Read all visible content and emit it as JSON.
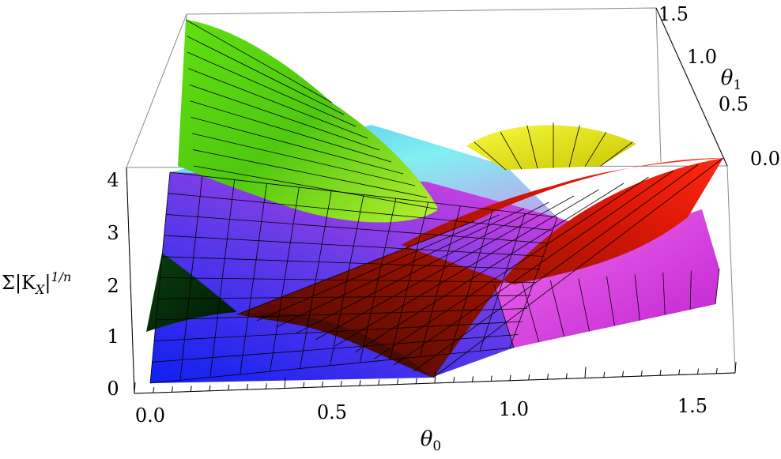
{
  "chart_data": {
    "type": "surface3d",
    "title": "",
    "xlabel": "θ0",
    "ylabel": "θ1",
    "zlabel": "Σ|K_X|^(1/n)",
    "xlabel_parts": {
      "main": "θ",
      "sub": "0"
    },
    "ylabel_parts": {
      "main": "θ",
      "sub": "1"
    },
    "zlabel_parts": {
      "prefix": "Σ|K",
      "sub": "X",
      "bar": "|",
      "sup": "1/n"
    },
    "xlim": [
      0,
      1.5708
    ],
    "ylim": [
      0,
      1.5708
    ],
    "zlim": [
      0,
      4
    ],
    "x_ticks": [
      "0.0",
      "0.5",
      "1.0",
      "1.5"
    ],
    "y_ticks": [
      "0.0",
      "0.5",
      "1.0",
      "1.5"
    ],
    "z_ticks": [
      "0",
      "1",
      "2",
      "3",
      "4"
    ],
    "x_tick_values": [
      0,
      0.5,
      1.0,
      1.5
    ],
    "y_tick_values": [
      0,
      0.5,
      1.0,
      1.5
    ],
    "z_tick_values": [
      0,
      1,
      2,
      3,
      4
    ],
    "boxed": true,
    "mesh": true,
    "surfaces": [
      {
        "name": "",
        "color_scheme": "blue-magenta-cyan",
        "colors": [
          "#1a2cf0",
          "#8a38e0",
          "#e040e0",
          "#60e8f0"
        ]
      },
      {
        "name": "",
        "color_scheme": "green",
        "colors": [
          "#30b000",
          "#70e020",
          "#a0f040"
        ]
      },
      {
        "name": "",
        "color_scheme": "red",
        "colors": [
          "#5a0a00",
          "#b01000",
          "#ff2010"
        ]
      },
      {
        "name": "",
        "color_scheme": "yellow",
        "colors": [
          "#c0c000",
          "#f0f020",
          "#ffff60"
        ]
      },
      {
        "name": "",
        "color_scheme": "dark-green",
        "colors": [
          "#003000",
          "#0a5010",
          "#208030"
        ]
      }
    ]
  }
}
